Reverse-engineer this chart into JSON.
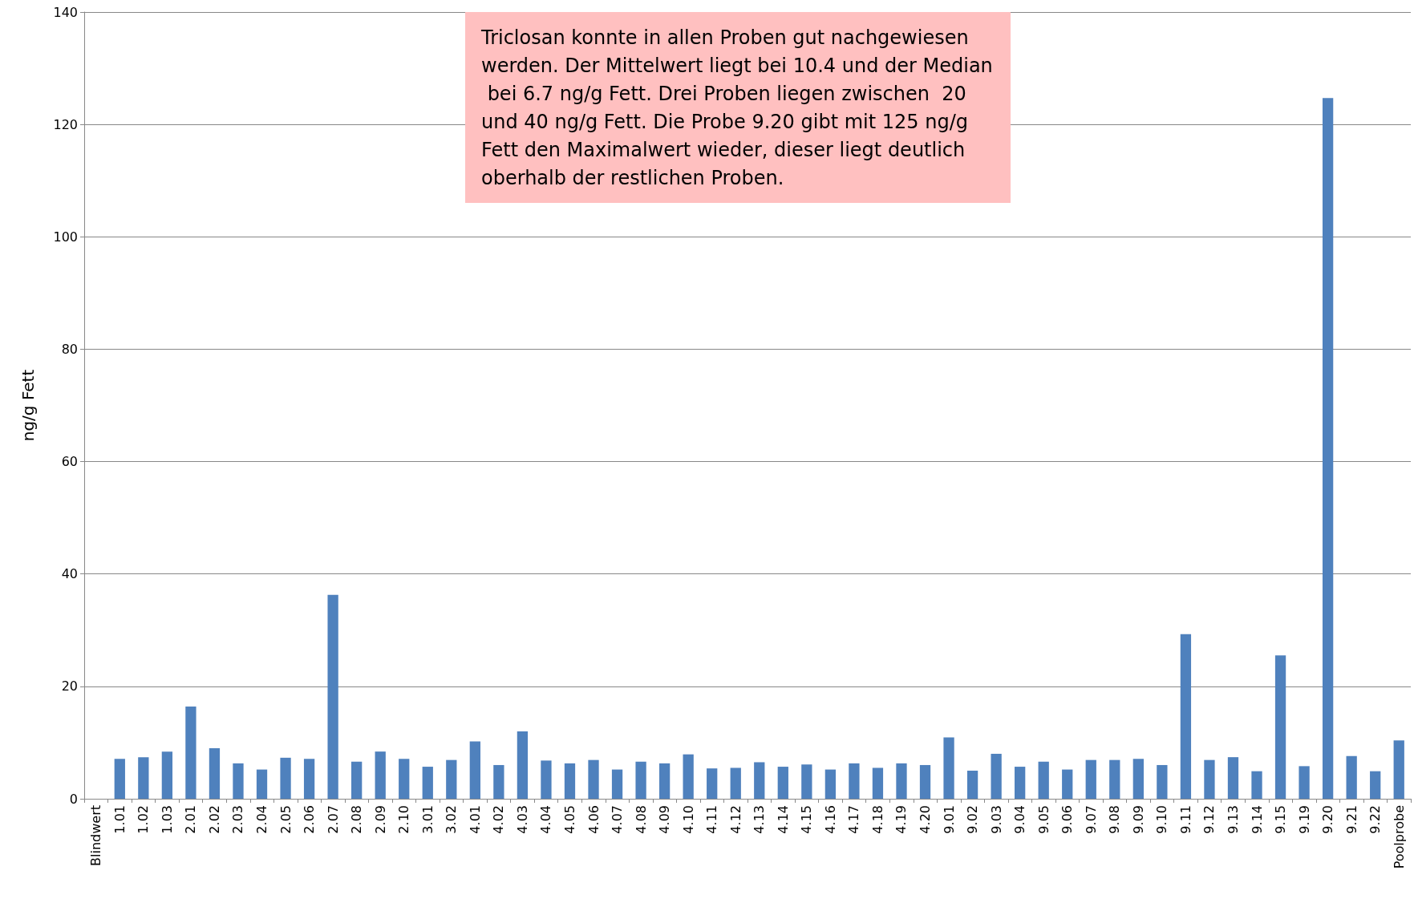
{
  "chart_data": {
    "type": "bar",
    "ylabel": "ng/g Fett",
    "categories": [
      "Blindwert",
      "1.01",
      "1.02",
      "1.03",
      "2.01",
      "2.02",
      "2.03",
      "2.04",
      "2.05",
      "2.06",
      "2.07",
      "2.08",
      "2.09",
      "2.10",
      "3.01",
      "3.02",
      "4.01",
      "4.02",
      "4.03",
      "4.04",
      "4.05",
      "4.06",
      "4.07",
      "4.08",
      "4.09",
      "4.10",
      "4.11",
      "4.12",
      "4.13",
      "4.14",
      "4.15",
      "4.16",
      "4.17",
      "4.18",
      "4.19",
      "4.20",
      "9.01",
      "9.02",
      "9.03",
      "9.04",
      "9.05",
      "9.06",
      "9.07",
      "9.08",
      "9.09",
      "9.10",
      "9.11",
      "9.12",
      "9.13",
      "9.14",
      "9.15",
      "9.19",
      "9.20",
      "9.21",
      "9.22",
      "Poolprobe"
    ],
    "values": [
      0,
      7.1,
      7.4,
      8.4,
      16.4,
      9.0,
      6.3,
      5.2,
      7.3,
      7.1,
      36.3,
      6.6,
      8.4,
      7.1,
      5.7,
      6.9,
      10.2,
      6.0,
      12.0,
      6.8,
      6.3,
      6.9,
      5.2,
      6.6,
      6.3,
      7.9,
      5.4,
      5.5,
      6.5,
      5.7,
      6.1,
      5.2,
      6.3,
      5.5,
      6.3,
      6.0,
      10.9,
      5.0,
      8.0,
      5.7,
      6.6,
      5.2,
      6.9,
      6.9,
      7.1,
      6.0,
      29.3,
      6.9,
      7.4,
      4.9,
      25.5,
      5.8,
      124.7,
      7.6,
      4.9,
      10.4
    ],
    "color": "#4f81bd",
    "ylim": [
      0,
      140
    ],
    "yticks": [
      0,
      20,
      40,
      60,
      80,
      100,
      120,
      140
    ],
    "grid": "y",
    "annotations": [
      "Triclosan konnte in allen Proben gut nachgewiesen werden. Der Mittelwert liegt bei 10.4 und der Median bei 6.7 ng/g Fett. Drei Proben liegen zwischen  20 und 40 ng/g Fett. Die Probe 9.20 gibt mit 125 ng/g Fett den Maximalwert wieder, dieser liegt deutlich oberhalb der restlichen Proben."
    ]
  }
}
